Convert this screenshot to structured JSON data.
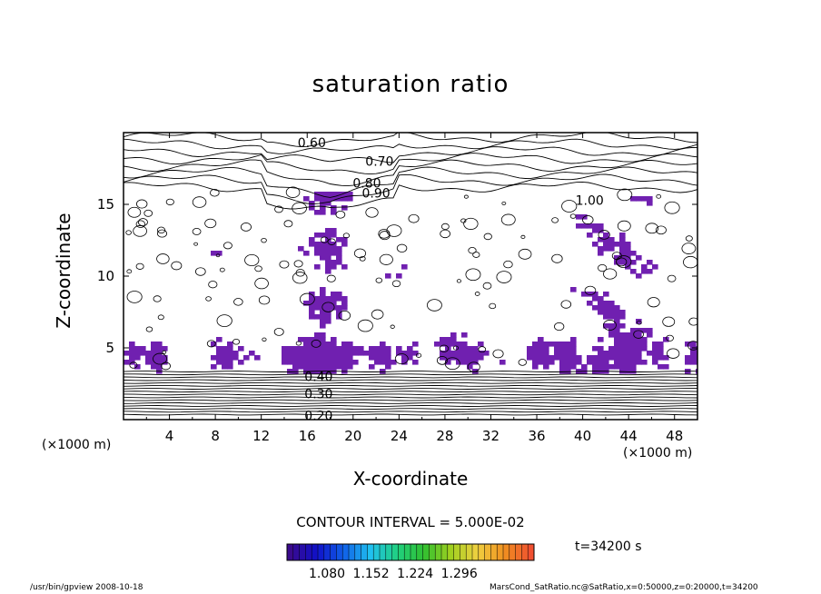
{
  "chart_data": {
    "type": "contour",
    "title": "saturation ratio",
    "xlabel": "X-coordinate",
    "ylabel": "Z-coordinate",
    "x_unit": "(×1000 m)",
    "y_unit": "(×1000 m)",
    "xlim": [
      0,
      50
    ],
    "ylim": [
      0,
      20
    ],
    "x_ticks": [
      4,
      8,
      12,
      16,
      20,
      24,
      28,
      32,
      36,
      40,
      44,
      48
    ],
    "y_ticks": [
      5,
      10,
      15
    ],
    "contour_labels": [
      {
        "text": "0.60",
        "x": 16.4,
        "y": 19.3
      },
      {
        "text": "0.70",
        "x": 22.3,
        "y": 18.0
      },
      {
        "text": "0.80",
        "x": 21.2,
        "y": 16.5
      },
      {
        "text": "0.90",
        "x": 22.0,
        "y": 15.8
      },
      {
        "text": "1.00",
        "x": 40.6,
        "y": 15.3
      },
      {
        "text": "0.40",
        "x": 17.0,
        "y": 3.0
      },
      {
        "text": "0.30",
        "x": 17.0,
        "y": 1.8
      },
      {
        "text": "0.20",
        "x": 17.0,
        "y": 0.3
      }
    ],
    "contour_interval": "CONTOUR INTERVAL = 5.000E-02",
    "time": "t=34200 s",
    "colorbar": {
      "tick_labels": [
        "1.080",
        "1.152",
        "1.224",
        "1.296"
      ],
      "colors": [
        "#3a0a8c",
        "#1010c8",
        "#1060e8",
        "#20c0f0",
        "#20d080",
        "#30c030",
        "#a0d020",
        "#f0d040",
        "#f09020",
        "#f05030"
      ]
    },
    "fill_color": "#7020b0"
  },
  "footer": {
    "left": "/usr/bin/gpview   2008-10-18",
    "right": "MarsCond_SatRatio.nc@SatRatio,x=0:50000,z=0:20000,t=34200"
  }
}
